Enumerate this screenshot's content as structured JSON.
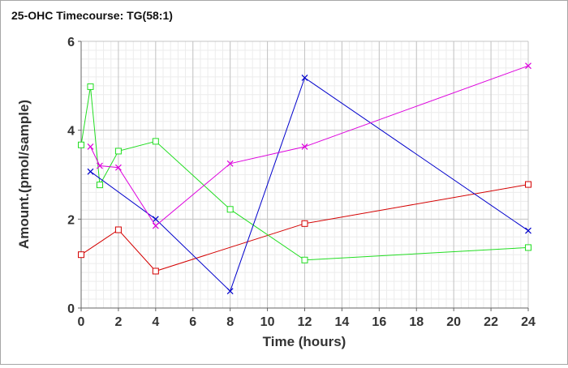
{
  "chart_data": {
    "type": "line",
    "title": "25-OHC Timecourse: TG(58:1)",
    "xlabel": "Time (hours)",
    "ylabel": "Amount.(pmol/sample)",
    "xlim": [
      0,
      24
    ],
    "ylim": [
      0,
      6
    ],
    "x_ticks": [
      0,
      2,
      4,
      6,
      8,
      10,
      12,
      14,
      16,
      18,
      20,
      22,
      24
    ],
    "y_ticks": [
      0,
      2,
      4,
      6
    ],
    "grid": true,
    "legend": "none",
    "series": [
      {
        "color": "#d40000",
        "marker": "square",
        "points": [
          [
            0,
            1.2
          ],
          [
            2,
            1.76
          ],
          [
            4,
            0.83
          ],
          [
            12,
            1.9
          ],
          [
            24,
            2.78
          ]
        ]
      },
      {
        "color": "#22dd22",
        "marker": "square",
        "points": [
          [
            0,
            3.67
          ],
          [
            0.5,
            4.98
          ],
          [
            1,
            2.77
          ],
          [
            2,
            3.53
          ],
          [
            4,
            3.75
          ],
          [
            8,
            2.22
          ],
          [
            12,
            1.08
          ],
          [
            24,
            1.36
          ]
        ]
      },
      {
        "color": "#0000cc",
        "marker": "x",
        "points": [
          [
            0.5,
            3.07
          ],
          [
            4,
            2.0
          ],
          [
            8,
            0.38
          ],
          [
            12,
            5.18
          ],
          [
            24,
            1.74
          ]
        ]
      },
      {
        "color": "#dd00dd",
        "marker": "x",
        "points": [
          [
            0.5,
            3.63
          ],
          [
            1,
            3.2
          ],
          [
            2,
            3.16
          ],
          [
            4,
            1.85
          ],
          [
            8,
            3.25
          ],
          [
            12,
            3.63
          ],
          [
            24,
            5.45
          ]
        ]
      }
    ]
  }
}
